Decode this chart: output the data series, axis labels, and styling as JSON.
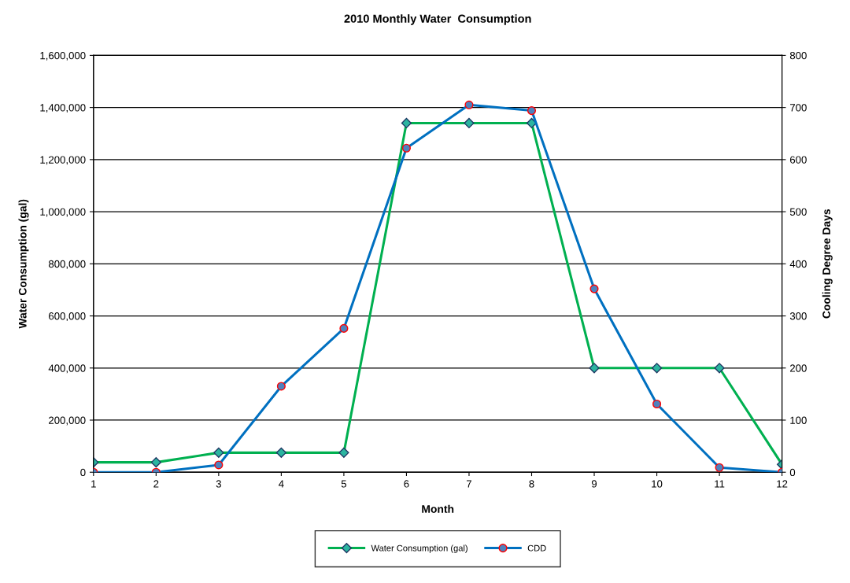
{
  "chart_data": {
    "type": "line",
    "title": "2010 Monthly Water  Consumption",
    "xlabel": "Month",
    "ylabel": "Water Consumption (gal)",
    "y2label": "Cooling Degree Days",
    "x": [
      1,
      2,
      3,
      4,
      5,
      6,
      7,
      8,
      9,
      10,
      11,
      12
    ],
    "series": [
      {
        "name": "Water Consumption (gal)",
        "color": "#00b050",
        "marker": "diamond",
        "values": [
          38000,
          38000,
          75000,
          75000,
          75000,
          1340000,
          1340000,
          1340000,
          400000,
          400000,
          400000,
          30000
        ]
      },
      {
        "name": "CDD",
        "color": "#0070c0",
        "marker": "circle",
        "axis": "y2",
        "values": [
          0,
          0,
          14,
          165,
          276,
          622,
          705,
          694,
          352,
          131,
          9,
          0
        ]
      }
    ],
    "xlim": [
      1,
      12
    ],
    "xticks": [
      1,
      2,
      3,
      4,
      5,
      6,
      7,
      8,
      9,
      10,
      11,
      12
    ],
    "ylim": [
      0,
      1600000
    ],
    "yticks": [
      {
        "value": 0,
        "label": "0"
      },
      {
        "value": 200000,
        "label": "200,000"
      },
      {
        "value": 400000,
        "label": "400,000"
      },
      {
        "value": 600000,
        "label": "600,000"
      },
      {
        "value": 800000,
        "label": "800,000"
      },
      {
        "value": 1000000,
        "label": "1,000,000"
      },
      {
        "value": 1200000,
        "label": "1,200,000"
      },
      {
        "value": 1400000,
        "label": "1,400,000"
      },
      {
        "value": 1600000,
        "label": "1,600,000"
      }
    ],
    "y2lim": [
      0,
      800
    ],
    "y2ticks": [
      0,
      100,
      200,
      300,
      400,
      500,
      600,
      700,
      800
    ],
    "grid": "y",
    "legend": "bottom",
    "line_style": "solid"
  }
}
